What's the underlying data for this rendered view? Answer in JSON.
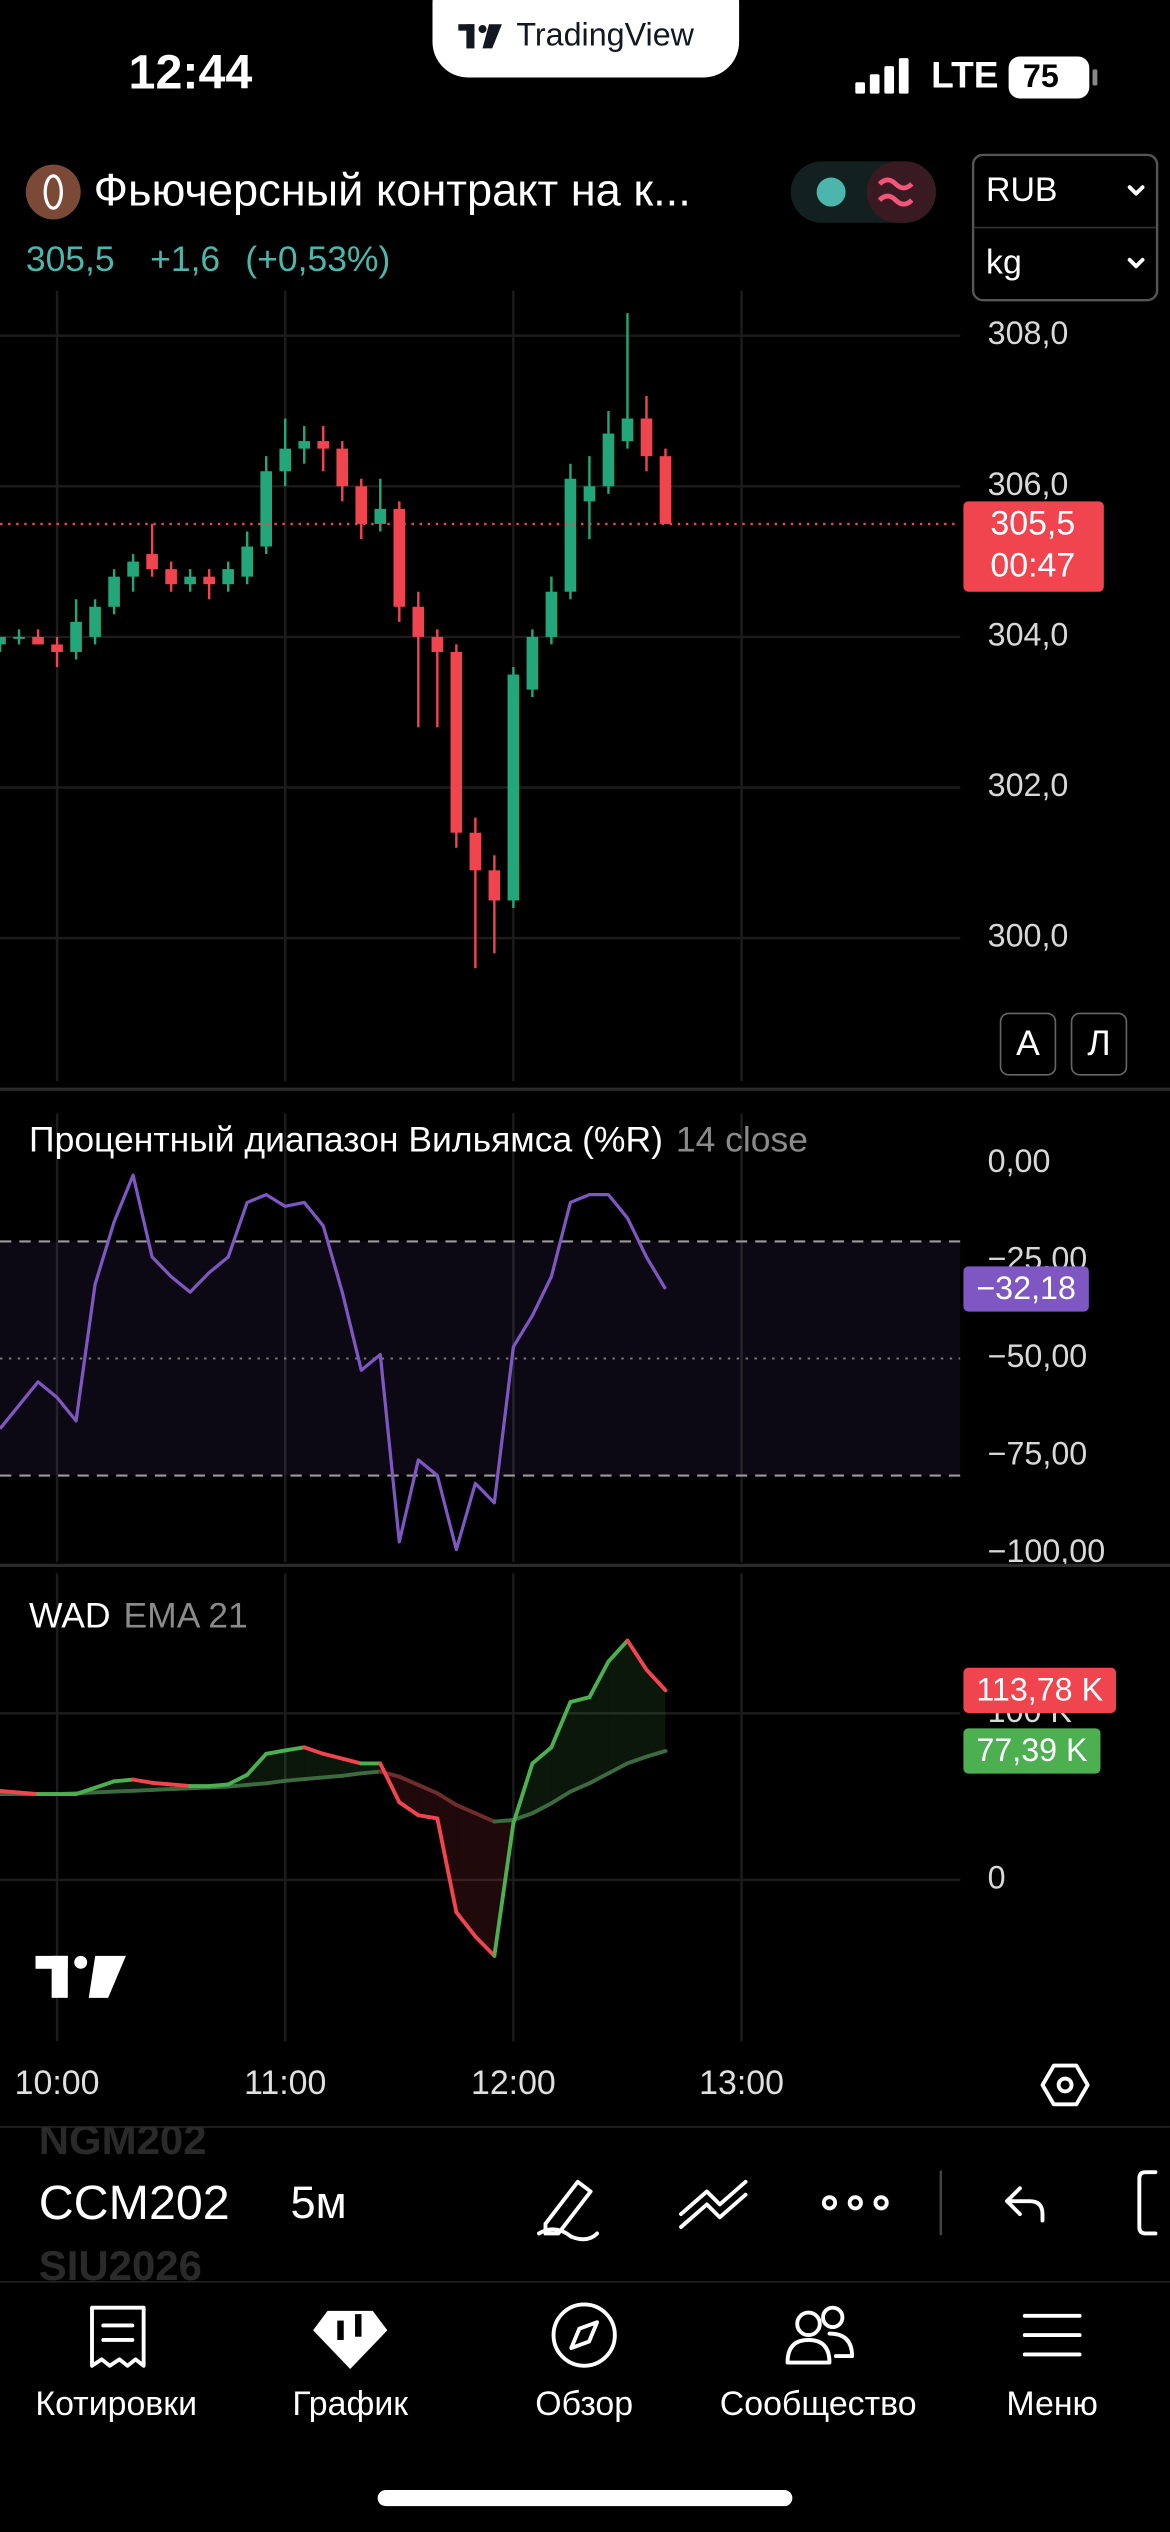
{
  "status_bar": {
    "time": "12:44",
    "network": "LTE",
    "battery": "75"
  },
  "banner": "TradingView",
  "header": {
    "symbol_name": "Фьючерсный контракт на к...",
    "price": "305,5",
    "change": "+1,6",
    "change_percent": "(+0,53%)",
    "currency": "RUB",
    "unit": "kg"
  },
  "scale_buttons": [
    "A",
    "Л"
  ],
  "chart_data": [
    {
      "type": "candlestick",
      "up_color": "#22a67a",
      "down_color": "#f0444f",
      "open": [
        303.9,
        304.0,
        304.0,
        303.9,
        303.8,
        304.0,
        304.4,
        304.8,
        305.1,
        304.9,
        304.7,
        304.8,
        304.7,
        304.8,
        305.2,
        306.2,
        306.5,
        306.6,
        306.5,
        306.0,
        305.5,
        305.7,
        304.4,
        304.0,
        303.8,
        301.4,
        300.9,
        300.5,
        303.3,
        304.0,
        304.6,
        305.8,
        306.0,
        306.6,
        306.9,
        306.4
      ],
      "high": [
        304.0,
        304.1,
        304.1,
        304.0,
        304.5,
        304.5,
        304.9,
        305.1,
        305.5,
        305.0,
        304.9,
        304.9,
        305.0,
        305.4,
        306.4,
        306.9,
        306.8,
        306.8,
        306.6,
        306.1,
        306.1,
        305.8,
        304.6,
        304.1,
        303.9,
        301.6,
        301.1,
        303.6,
        304.1,
        304.8,
        306.3,
        306.4,
        307.0,
        308.3,
        307.2,
        306.5
      ],
      "low": [
        303.8,
        303.9,
        303.9,
        303.6,
        303.7,
        303.9,
        304.3,
        304.6,
        304.8,
        304.6,
        304.6,
        304.5,
        304.6,
        304.7,
        305.1,
        306.0,
        306.3,
        306.2,
        305.8,
        305.3,
        305.4,
        304.2,
        302.8,
        302.8,
        301.2,
        299.6,
        299.8,
        300.4,
        303.2,
        303.9,
        304.5,
        305.3,
        305.9,
        306.5,
        306.2,
        305.5
      ],
      "close": [
        304.0,
        304.0,
        303.9,
        303.8,
        304.2,
        304.4,
        304.8,
        305.0,
        304.9,
        304.7,
        304.8,
        304.7,
        304.9,
        305.2,
        306.2,
        306.5,
        306.6,
        306.5,
        306.0,
        305.5,
        305.7,
        304.4,
        304.0,
        303.8,
        301.4,
        300.9,
        300.5,
        303.5,
        304.0,
        304.6,
        306.1,
        306.0,
        306.7,
        306.9,
        306.4,
        305.5
      ],
      "xlim": [
        0,
        50.5
      ],
      "ylim": [
        298.1,
        308.6
      ],
      "yticks": [
        {
          "value": 300,
          "label": "300,0"
        },
        {
          "value": 302,
          "label": "302,0"
        },
        {
          "value": 304,
          "label": "304,0"
        },
        {
          "value": 306,
          "label": "306,0"
        },
        {
          "value": 308,
          "label": "308,0"
        }
      ],
      "grid": true,
      "last_value": {
        "value": 305.5,
        "label": "305,5"
      },
      "countdown": "00:47"
    },
    {
      "type": "line",
      "title": "Процентный диапазон Вильямса (%R)",
      "subtitle": "14 close",
      "color": "#7e57c2",
      "values": [
        -68,
        -62,
        -56,
        -60,
        -66,
        -31,
        -15,
        -3,
        -24,
        -29,
        -33,
        -28,
        -24,
        -10,
        -8,
        -11,
        -10,
        -16,
        -33,
        -53,
        -49,
        -97,
        -76,
        -80,
        -99,
        -82,
        -87,
        -47,
        -39,
        -29,
        -10,
        -8,
        -8,
        -14,
        -24,
        -32.18
      ],
      "value_labels": [
        null,
        null,
        null,
        null,
        null,
        null,
        null,
        null,
        null,
        null,
        null,
        null,
        null,
        null,
        null,
        null,
        null,
        null,
        null,
        null,
        null,
        null,
        null,
        null,
        null,
        null,
        null,
        null,
        null,
        null,
        null,
        null,
        null,
        null,
        null,
        "−32,18"
      ],
      "xlim": [
        0,
        50.5
      ],
      "ylim": [
        -102.2,
        12.8
      ],
      "yticks": [
        {
          "value": -100,
          "label": "−100,00"
        },
        {
          "value": -75,
          "label": "−75,00"
        },
        {
          "value": -50,
          "label": "−50,00"
        },
        {
          "value": -25,
          "label": "−25,00"
        },
        {
          "value": 0,
          "label": "0,00"
        }
      ],
      "upper_band": -20,
      "lower_band": -80,
      "middle": -50
    },
    {
      "type": "line",
      "title": "WAD",
      "subtitle": "EMA 21",
      "series": [
        {
          "color_up": "#4caf50",
          "color_down": "#f0444f",
          "label_color": "#f0444f",
          "values": [
            53400,
            52400,
            51500,
            51500,
            51500,
            55300,
            59200,
            60200,
            58300,
            57300,
            56300,
            56300,
            57300,
            63100,
            75700,
            77700,
            79600,
            75700,
            72800,
            69900,
            69900,
            46600,
            38800,
            36900,
            -19400,
            -34000,
            -45600,
            34000,
            69900,
            79600,
            106800,
            109700,
            131100,
            143700,
            126200,
            113780
          ],
          "value_labels": [
            null,
            null,
            null,
            null,
            null,
            null,
            null,
            null,
            null,
            null,
            null,
            null,
            null,
            null,
            null,
            null,
            null,
            null,
            null,
            null,
            null,
            null,
            null,
            null,
            null,
            null,
            null,
            null,
            null,
            null,
            null,
            null,
            null,
            null,
            null,
            "113,78 K"
          ]
        },
        {
          "color_up": "#3b6b3e",
          "color_down": "#6e2c2c",
          "label_color": "#4caf50",
          "values": [
            51500,
            51500,
            51500,
            51500,
            52000,
            52500,
            53000,
            53500,
            54000,
            54500,
            55000,
            55500,
            56000,
            57000,
            58000,
            59500,
            60500,
            61500,
            62500,
            64000,
            65000,
            62000,
            57000,
            52000,
            45000,
            40000,
            35000,
            36000,
            40000,
            46000,
            53000,
            58000,
            64000,
            70000,
            74000,
            77390
          ],
          "value_labels": [
            null,
            null,
            null,
            null,
            null,
            null,
            null,
            null,
            null,
            null,
            null,
            null,
            null,
            null,
            null,
            null,
            null,
            null,
            null,
            null,
            null,
            null,
            null,
            null,
            null,
            null,
            null,
            null,
            null,
            null,
            null,
            null,
            null,
            null,
            null,
            "77,39 K"
          ]
        }
      ],
      "xlim": [
        0,
        50.5
      ],
      "ylim": [
        -97000,
        184000
      ],
      "yticks": [
        0,
        {
          "value": 100000,
          "label": "100 K"
        }
      ],
      "xticks": [
        {
          "value": 3,
          "label": "10:00"
        },
        {
          "value": 15,
          "label": "11:00"
        },
        {
          "value": 27,
          "label": "12:00"
        },
        {
          "value": 39,
          "label": "13:00"
        }
      ]
    }
  ],
  "toolbar": {
    "symbol_above": "NGM202",
    "symbol": "CCM202",
    "symbol_below": "SIU2026",
    "timeframe": "5м"
  },
  "nav": [
    "Котировки",
    "График",
    "Обзор",
    "Сообщество",
    "Меню"
  ]
}
